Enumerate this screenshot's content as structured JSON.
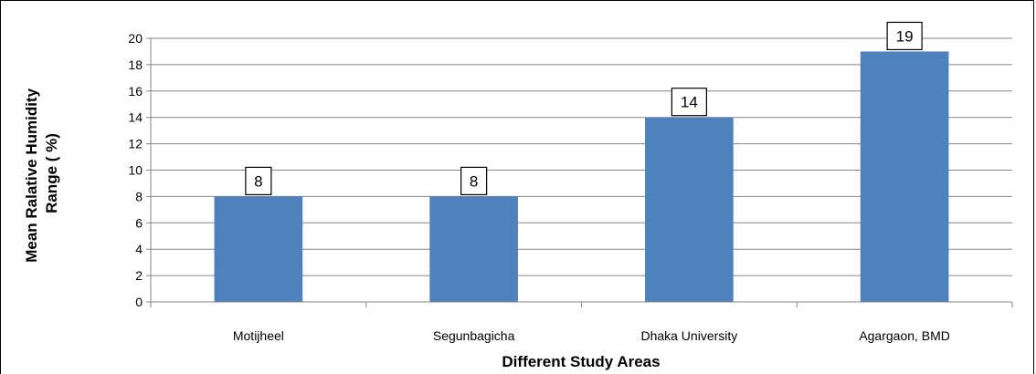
{
  "chart_data": {
    "type": "bar",
    "categories": [
      "Motijheel",
      "Segunbagicha",
      "Dhaka University",
      "Agargaon, BMD"
    ],
    "values": [
      8,
      8,
      14,
      19
    ],
    "data_labels": [
      "8",
      "8",
      "14",
      "19"
    ],
    "xlabel": "Different Study Areas",
    "ylabel_lines": [
      "Mean Ralative Humidity",
      "Range ( %)"
    ],
    "ylim": [
      0,
      20
    ],
    "yticks": [
      0,
      2,
      4,
      6,
      8,
      10,
      12,
      14,
      16,
      18,
      20
    ],
    "grid": true,
    "legend": "none",
    "colors": {
      "bar": "#4f81bd",
      "grid": "#868686",
      "axis": "#868686"
    }
  }
}
